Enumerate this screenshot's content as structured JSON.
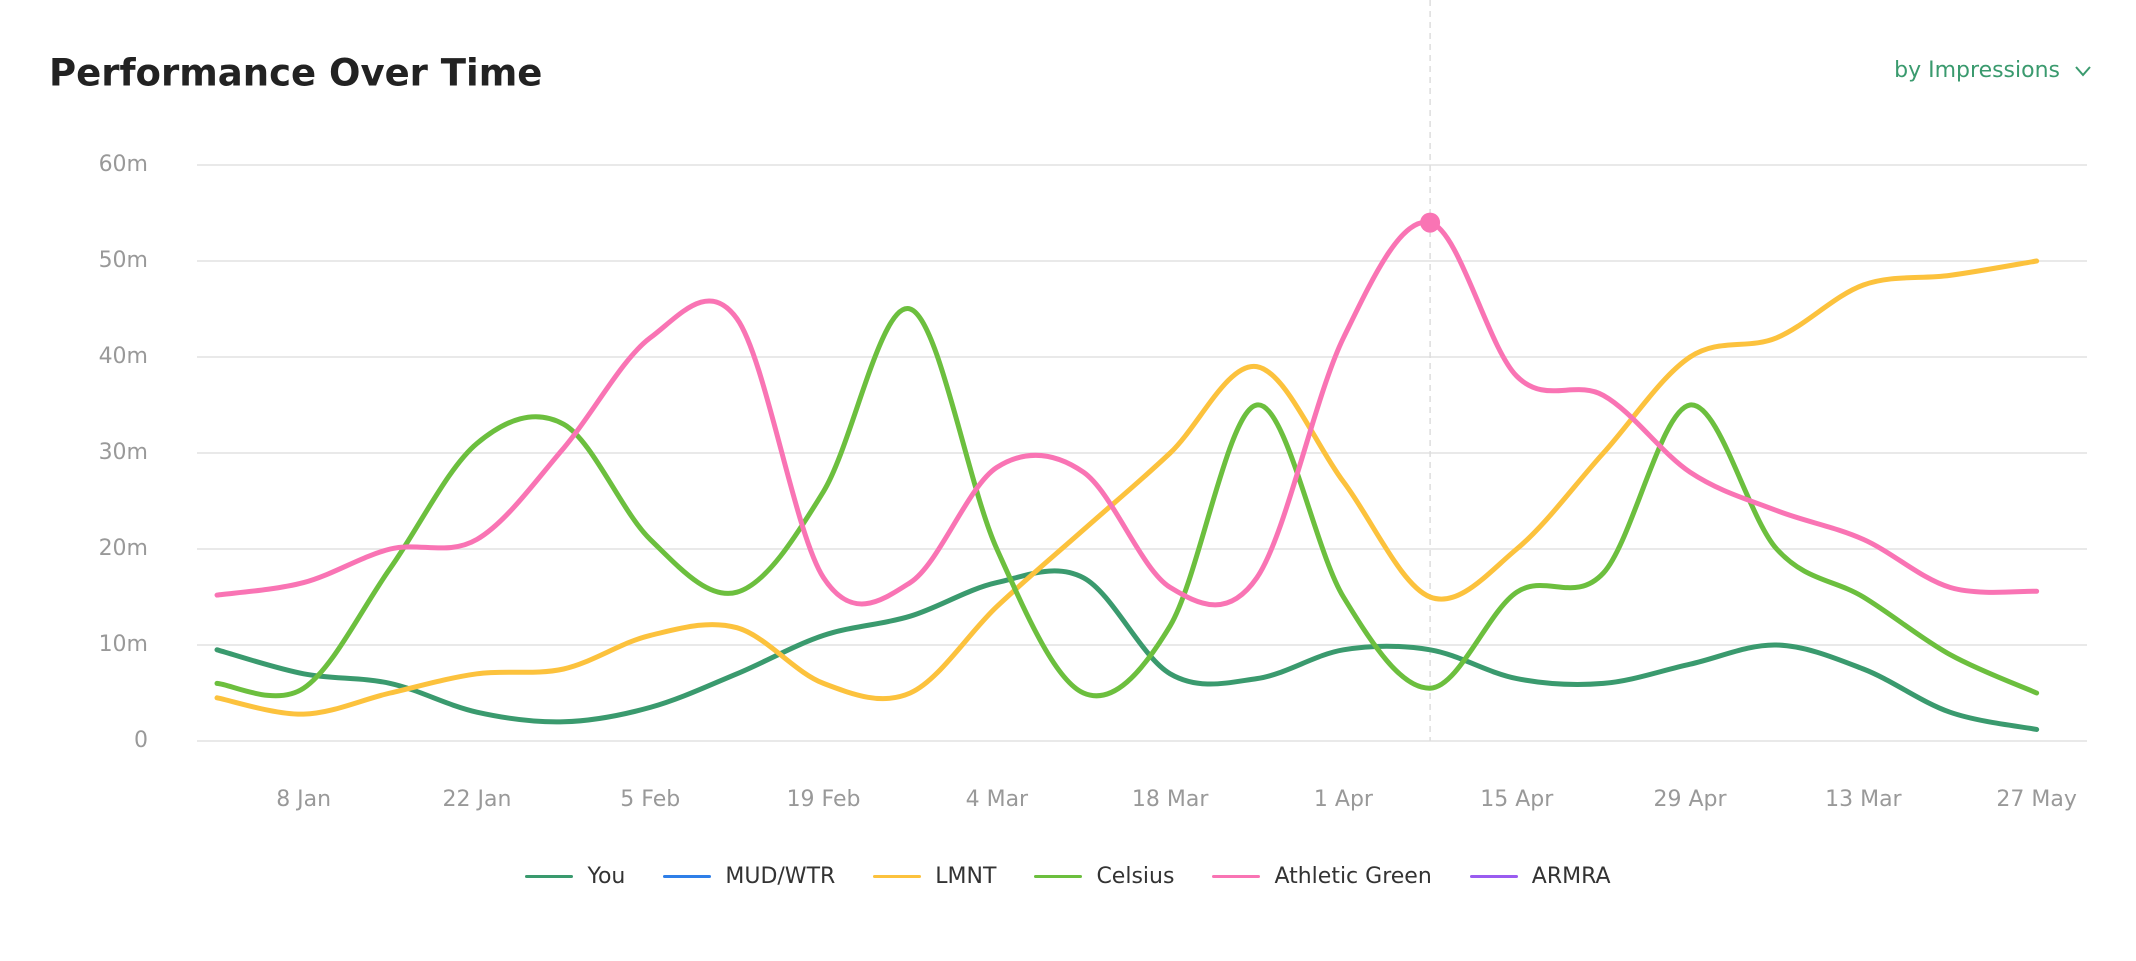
{
  "chart_data": {
    "type": "line",
    "title": "Performance Over Time",
    "categories": [
      null,
      "8 Jan",
      null,
      "22 Jan",
      null,
      "5 Feb",
      null,
      "19 Feb",
      null,
      "4 Mar",
      null,
      "18 Mar",
      null,
      "1 Apr",
      null,
      "15 Apr",
      null,
      "29 Apr",
      null,
      "13 Mar",
      null,
      "27 May"
    ],
    "series": [
      {
        "name": "You",
        "color": "#3a9a6e",
        "values": [
          9.5,
          7,
          6,
          3,
          2,
          3.5,
          7,
          11,
          13,
          16.5,
          17,
          7,
          6.5,
          9.5,
          9.5,
          6.5,
          6,
          8,
          10,
          7.5,
          3,
          1.2
        ]
      },
      {
        "name": "MUD/WTR",
        "color": "#2f7fe8",
        "values": [
          null,
          null,
          null,
          null,
          null,
          null,
          null,
          null,
          null,
          null,
          null,
          null,
          null,
          null,
          null,
          null,
          null,
          null,
          null,
          null,
          null,
          null
        ]
      },
      {
        "name": "LMNT",
        "color": "#fcc23d",
        "values": [
          4.5,
          2.8,
          5,
          7,
          7.5,
          11,
          11.8,
          6,
          5,
          14,
          22,
          30,
          39,
          27,
          15,
          20,
          30,
          40,
          42,
          47.5,
          48.5,
          50
        ]
      },
      {
        "name": "Celsius",
        "color": "#6cbf3e",
        "values": [
          6,
          5.5,
          18,
          31,
          33,
          21,
          15.5,
          26,
          45,
          20,
          5,
          12,
          35,
          15,
          5.5,
          15.5,
          17.5,
          35,
          20,
          15,
          9,
          5
        ]
      },
      {
        "name": "Athletic Green",
        "color": "#f974b4",
        "values": [
          15.2,
          16.5,
          20,
          21,
          30.5,
          42,
          44,
          17,
          16.5,
          28.5,
          28,
          16,
          17,
          42,
          54,
          38,
          36,
          28,
          24,
          21,
          16,
          15.6
        ]
      },
      {
        "name": "ARMRA",
        "color": "#9a5cf0",
        "values": [
          null,
          null,
          null,
          null,
          null,
          null,
          null,
          null,
          null,
          null,
          null,
          null,
          null,
          null,
          null,
          null,
          null,
          null,
          null,
          null,
          null,
          null
        ]
      }
    ],
    "ylim": [
      0,
      60
    ],
    "yticks": [
      0,
      {
        "value": 10,
        "label": "10m"
      },
      {
        "value": 20,
        "label": "20m"
      },
      {
        "value": 30,
        "label": "30m"
      },
      {
        "value": 40,
        "label": "40m"
      },
      {
        "value": 50,
        "label": "50m"
      },
      {
        "value": 60,
        "label": "60m"
      }
    ],
    "grid": true,
    "highlight": {
      "series": 4,
      "index": 14
    }
  },
  "controls": {
    "metric": "by Impressions"
  }
}
